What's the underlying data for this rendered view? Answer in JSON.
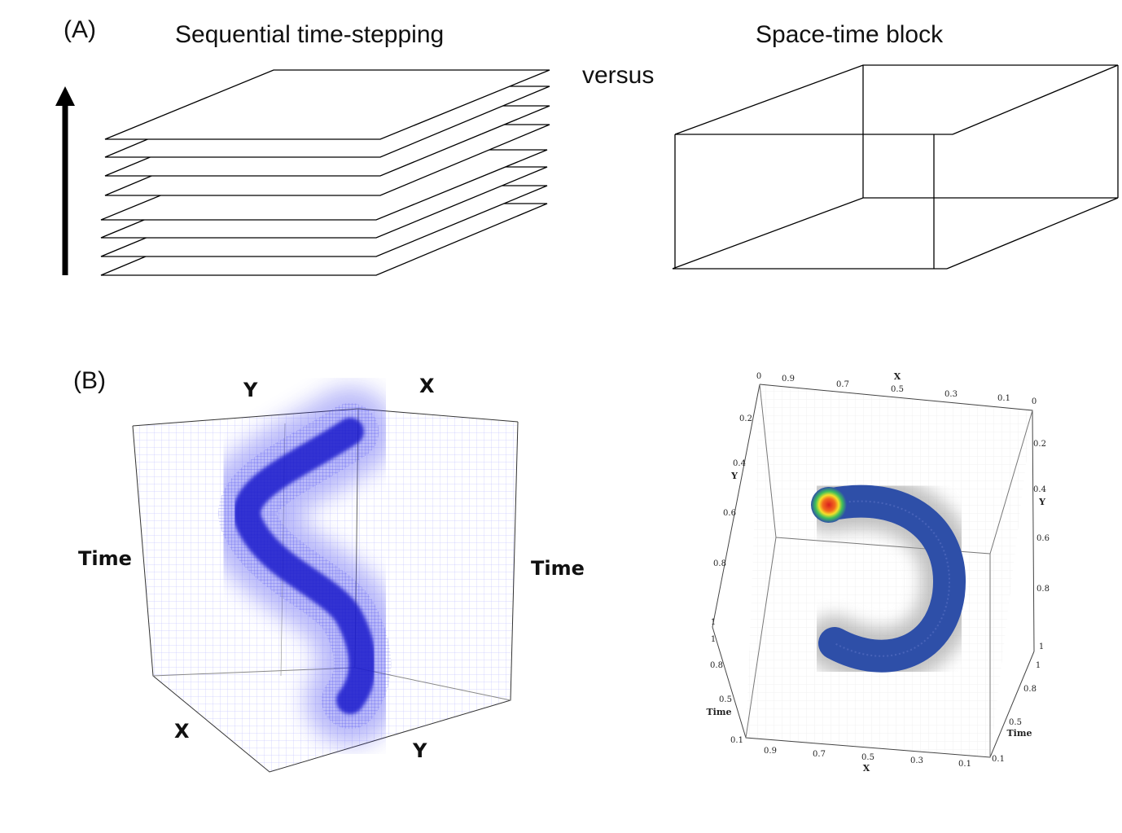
{
  "panel_a": {
    "label": "(A)",
    "left_title": "Sequential time-stepping",
    "right_title": "Space-time block",
    "versus": "versus"
  },
  "panel_b": {
    "label": "(B)",
    "left_cube": {
      "top_left_axis": "Y",
      "top_right_axis": "X",
      "left_axis": "Time",
      "right_axis": "Time",
      "bottom_left_axis": "X",
      "bottom_right_axis": "Y",
      "colors": {
        "mesh": "#6b6bff",
        "band": "#1a1acc"
      }
    },
    "right_cube": {
      "top_x_label": "X",
      "top_x_ticks": [
        "0",
        "0.9",
        "0.7",
        "0.5",
        "0.3",
        "0.1",
        "0"
      ],
      "left_y_label": "Y",
      "left_y_ticks": [
        "0.2",
        "0.4",
        "0.6",
        "0.8",
        "1"
      ],
      "right_y_label": "Y",
      "right_y_ticks": [
        "0.2",
        "0.4",
        "0.6",
        "0.8",
        "1"
      ],
      "left_time_label": "Time",
      "left_time_ticks": [
        "1",
        "0.8",
        "0.5",
        "0.1"
      ],
      "right_time_label": "Time",
      "right_time_ticks": [
        "1",
        "0.8",
        "0.5",
        "0.1"
      ],
      "bottom_x_label": "X",
      "bottom_x_ticks": [
        "0.9",
        "0.7",
        "0.5",
        "0.3",
        "0.1"
      ],
      "colors": {
        "arc": "#2e4fa8",
        "hot": "#e0241b",
        "halo": "#b9b9b9"
      }
    }
  }
}
